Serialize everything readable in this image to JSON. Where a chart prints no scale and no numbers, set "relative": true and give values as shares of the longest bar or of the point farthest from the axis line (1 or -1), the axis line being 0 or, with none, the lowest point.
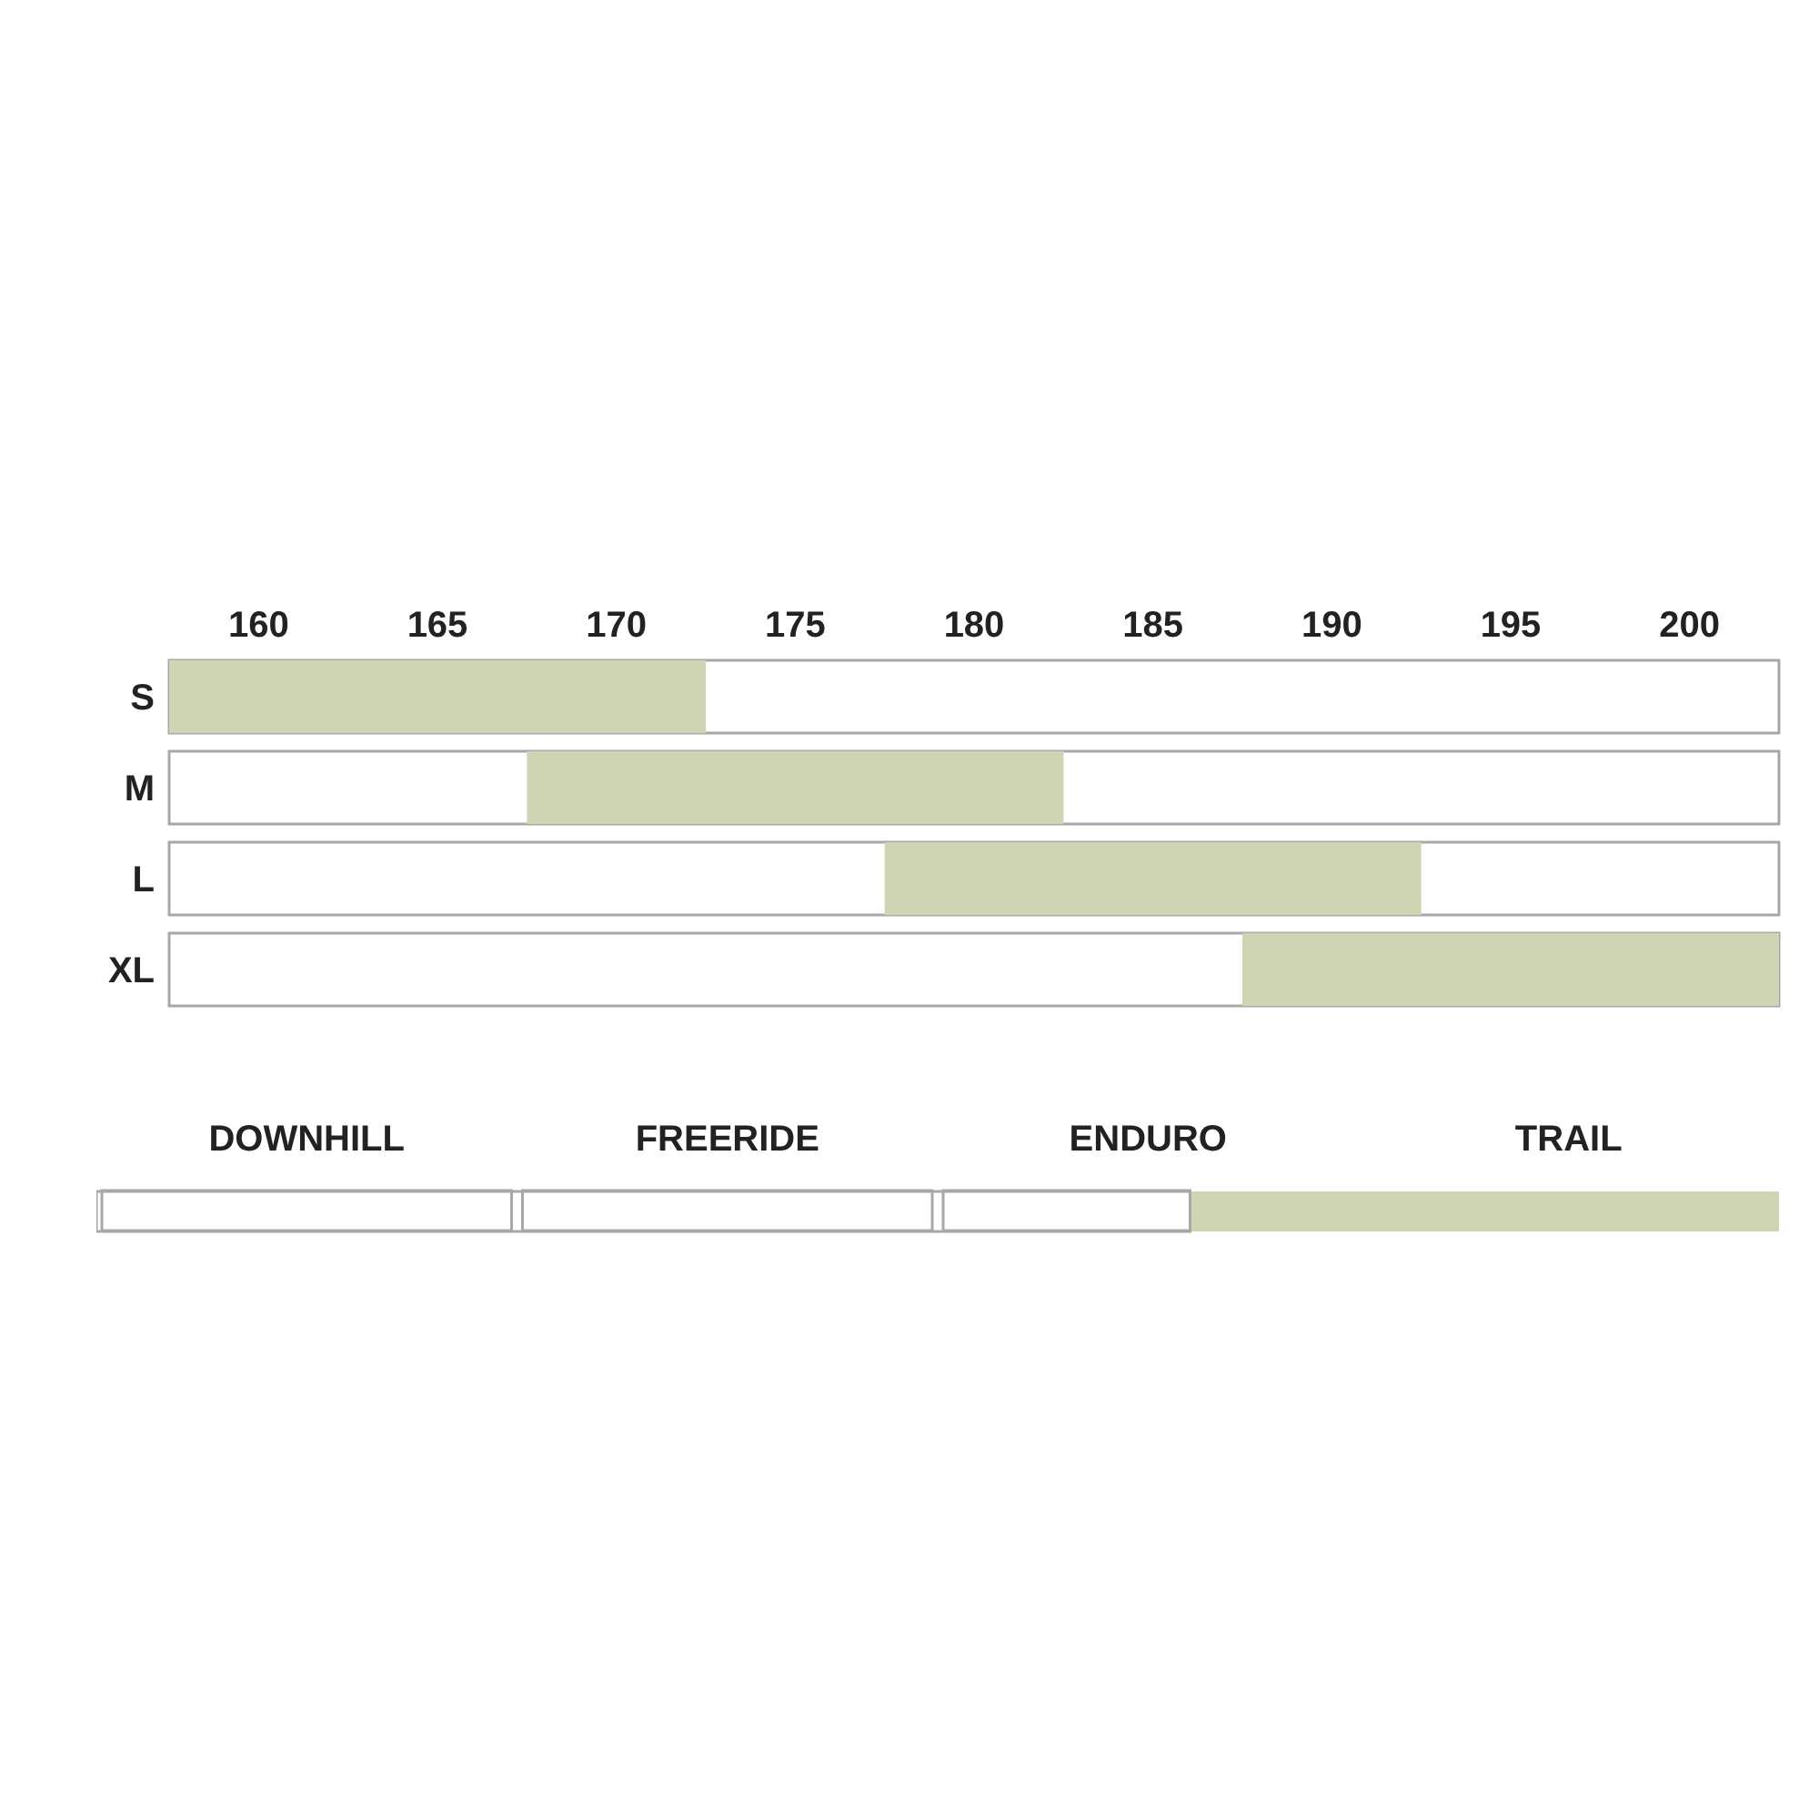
{
  "chart_data": [
    {
      "type": "bar",
      "orientation": "horizontal",
      "categories": [
        "S",
        "M",
        "L",
        "XL"
      ],
      "values": [
        15,
        15,
        15,
        15
      ],
      "base": [
        157.5,
        167.5,
        177.5,
        187.5
      ],
      "color": "#cfd5b2",
      "xlim": [
        157.5,
        202.5
      ],
      "xticks": [
        160,
        165,
        170,
        175,
        180,
        185,
        190,
        195,
        200
      ]
    },
    {
      "type": "bar",
      "orientation": "horizontal",
      "relative": true,
      "stacked": true,
      "categories": [
        null
      ],
      "series": [
        {
          "color": "#ffffff",
          "values": [
            0.65
          ]
        },
        {
          "color": "#cfd5b2",
          "values": [
            0.35
          ]
        }
      ],
      "annotations": [
        "DOWNHILL",
        "FREERIDE",
        "ENDURO",
        "TRAIL"
      ]
    }
  ]
}
